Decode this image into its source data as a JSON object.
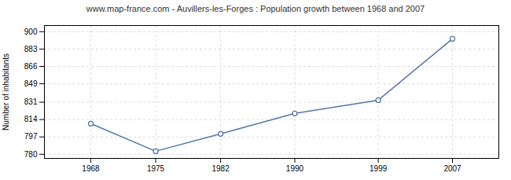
{
  "chart_data": {
    "type": "line",
    "title": "www.map-france.com - Auvillers-les-Forges : Population growth between 1968 and 2007",
    "ylabel": "Number of inhabitants",
    "x": [
      1968,
      1975,
      1982,
      1990,
      1999,
      2007
    ],
    "values": [
      810,
      783,
      800,
      820,
      833,
      893
    ],
    "xlim": [
      1963,
      2012
    ],
    "ylim": [
      776,
      906
    ],
    "xticks": [
      1968,
      1975,
      1982,
      1990,
      1999,
      2007
    ],
    "yticks": [
      780,
      797,
      814,
      831,
      849,
      866,
      883,
      900
    ],
    "grid": true,
    "color": "#5577aa",
    "marker": "circle"
  }
}
